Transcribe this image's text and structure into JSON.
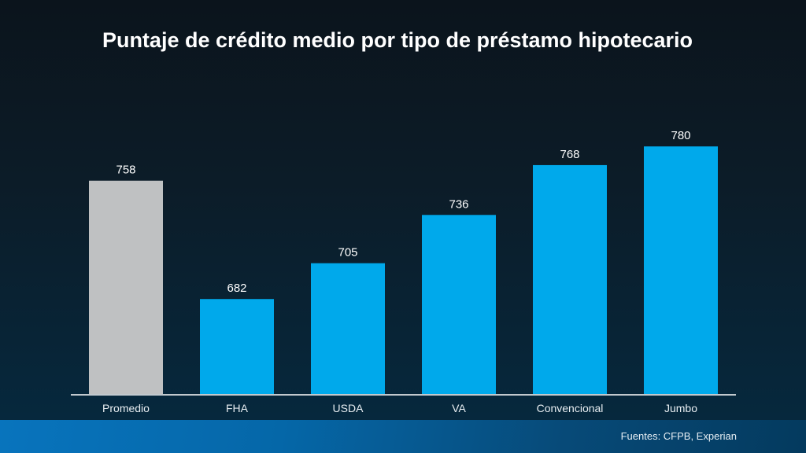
{
  "chart_data": {
    "type": "bar",
    "title": "Puntaje de crédito medio por tipo de préstamo hipotecario",
    "categories": [
      "Promedio",
      "FHA",
      "USDA",
      "VA",
      "Convencional",
      "Jumbo"
    ],
    "values": [
      758,
      682,
      705,
      736,
      768,
      780
    ],
    "colors": [
      "#bfc1c2",
      "#00a9eb",
      "#00a9eb",
      "#00a9eb",
      "#00a9eb",
      "#00a9eb"
    ],
    "xlabel": "",
    "ylabel": "",
    "ylim": [
      621,
      800
    ],
    "grid": false
  },
  "source": "Fuentes: CFPB, Experian"
}
